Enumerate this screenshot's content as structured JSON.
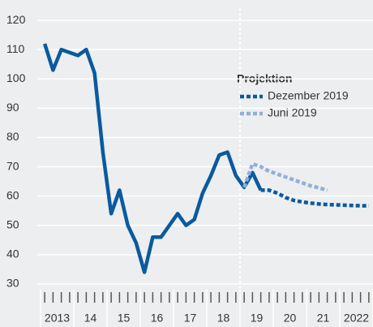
{
  "chart_data": {
    "type": "line",
    "xlim": [
      2013,
      2023
    ],
    "ylim": [
      25,
      125
    ],
    "yticks": [
      30,
      40,
      50,
      60,
      70,
      80,
      90,
      100,
      110,
      120
    ],
    "xticks": [
      {
        "value": 2013.5,
        "label": "2013"
      },
      {
        "value": 2014.5,
        "label": "14"
      },
      {
        "value": 2015.5,
        "label": "15"
      },
      {
        "value": 2016.5,
        "label": "16"
      },
      {
        "value": 2017.5,
        "label": "17"
      },
      {
        "value": 2018.5,
        "label": "18"
      },
      {
        "value": 2019.5,
        "label": "19"
      },
      {
        "value": 2020.5,
        "label": "20"
      },
      {
        "value": 2021.5,
        "label": "21"
      },
      {
        "value": 2022.5,
        "label": "2022"
      }
    ],
    "grid": true,
    "projection_start": 2019,
    "legend_title": "Projektion",
    "series": [
      {
        "color": "#0a5a9e",
        "style": "solid",
        "x": [
          2013.125,
          2013.375,
          2013.625,
          2013.875,
          2014.125,
          2014.375,
          2014.625,
          2014.875,
          2015.125,
          2015.375,
          2015.625,
          2015.875,
          2016.125,
          2016.375,
          2016.625,
          2016.875,
          2017.125,
          2017.375,
          2017.625,
          2017.875,
          2018.125,
          2018.375,
          2018.625,
          2018.875,
          2019.125,
          2019.375,
          2019.625
        ],
        "values": [
          112,
          103,
          110,
          109,
          108,
          110,
          102,
          75,
          54,
          62,
          50,
          44,
          34,
          46,
          46,
          50,
          54,
          50,
          52,
          61,
          67,
          74,
          75,
          67,
          63,
          68,
          62
        ]
      },
      {
        "name": "Dezember 2019",
        "color": "#0a5a9e",
        "style": "dotted",
        "x": [
          2019.625,
          2019.875,
          2020.125,
          2020.375,
          2020.625,
          2020.875,
          2021.125,
          2021.375,
          2021.625,
          2021.875,
          2022.125,
          2022.375,
          2022.625,
          2022.875
        ],
        "values": [
          62,
          62,
          61,
          59.5,
          58.5,
          58,
          57.6,
          57.3,
          57.1,
          57,
          56.9,
          56.8,
          56.7,
          56.7
        ]
      },
      {
        "name": "Juni 2019",
        "color": "#8fb0d8",
        "style": "dotted",
        "x": [
          2019.125,
          2019.375,
          2019.625,
          2019.875,
          2020.125,
          2020.375,
          2020.625,
          2020.875,
          2021.125,
          2021.375,
          2021.625
        ],
        "values": [
          63,
          71,
          70,
          68.5,
          67.5,
          66.5,
          65.5,
          64.5,
          63.5,
          62.8,
          62
        ]
      }
    ]
  }
}
